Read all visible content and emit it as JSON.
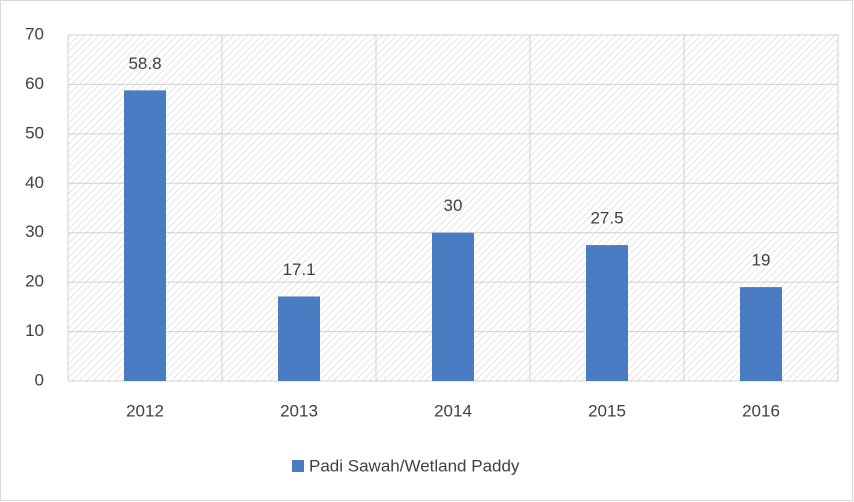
{
  "chart_data": {
    "type": "bar",
    "categories": [
      "2012",
      "2013",
      "2014",
      "2015",
      "2016"
    ],
    "series": [
      {
        "name": "Padi Sawah/Wetland Paddy",
        "color": "#4a7cc4",
        "values": [
          58.8,
          17.1,
          30,
          27.5,
          19
        ]
      }
    ],
    "ylim": [
      0,
      70
    ],
    "yticks": [
      0,
      10,
      20,
      30,
      40,
      50,
      60,
      70
    ],
    "grid": true,
    "legend": "bottom"
  }
}
